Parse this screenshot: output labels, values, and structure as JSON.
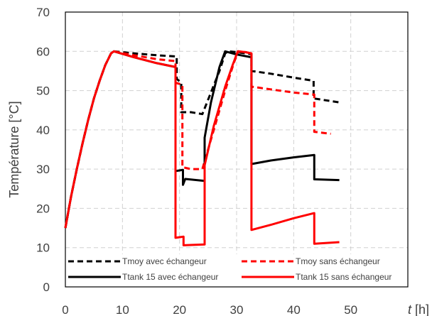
{
  "chart_data": {
    "type": "line",
    "title": "",
    "ylabel": "Température [°C]",
    "xlabel_var": "t",
    "xlabel_unit": " [h]",
    "xlim": [
      0,
      60
    ],
    "ylim": [
      0,
      70
    ],
    "x_ticks": [
      "0",
      "10",
      "20",
      "30",
      "40",
      "50"
    ],
    "y_ticks": [
      "0",
      "10",
      "20",
      "30",
      "40",
      "50",
      "60",
      "70"
    ],
    "grid": true,
    "legend_position": "bottom",
    "series": [
      {
        "name": "Tmoy avec échangeur",
        "color": "#000000",
        "dash": true,
        "points": [
          [
            0,
            15
          ],
          [
            1,
            23
          ],
          [
            2,
            30
          ],
          [
            3,
            36.5
          ],
          [
            4,
            42.5
          ],
          [
            5,
            48
          ],
          [
            6,
            52.5
          ],
          [
            7,
            56.5
          ],
          [
            8,
            59.5
          ],
          [
            8.5,
            60
          ],
          [
            12,
            59.5
          ],
          [
            16,
            59
          ],
          [
            19.5,
            58.7
          ],
          [
            19.5,
            53
          ],
          [
            20.3,
            52
          ],
          [
            20.3,
            44.5
          ],
          [
            22,
            44.5
          ],
          [
            24,
            44
          ],
          [
            25.5,
            49.5
          ],
          [
            27,
            55
          ],
          [
            28,
            59.5
          ],
          [
            28.5,
            60
          ],
          [
            30,
            59.8
          ],
          [
            31.5,
            59.5
          ],
          [
            32.6,
            59.3
          ],
          [
            32.6,
            55
          ],
          [
            36,
            54.3
          ],
          [
            40,
            53.3
          ],
          [
            43.5,
            52.5
          ],
          [
            43.5,
            48
          ],
          [
            48,
            47
          ]
        ]
      },
      {
        "name": "Tmoy sans échangeur",
        "color": "#ff0000",
        "dash": true,
        "points": [
          [
            0,
            15
          ],
          [
            1,
            23
          ],
          [
            2,
            30
          ],
          [
            3,
            36.5
          ],
          [
            4,
            42.5
          ],
          [
            5,
            48
          ],
          [
            6,
            52.5
          ],
          [
            7,
            56.5
          ],
          [
            8,
            59.5
          ],
          [
            8.5,
            60
          ],
          [
            12,
            59
          ],
          [
            16,
            58
          ],
          [
            19.3,
            57.5
          ],
          [
            19.3,
            52
          ],
          [
            20.5,
            51.5
          ],
          [
            20.5,
            30.5
          ],
          [
            22,
            30
          ],
          [
            24,
            30
          ],
          [
            26,
            40
          ],
          [
            28,
            50
          ],
          [
            29.5,
            57
          ],
          [
            30.3,
            60
          ],
          [
            31.5,
            59.8
          ],
          [
            32.6,
            59.5
          ],
          [
            32.6,
            51
          ],
          [
            36,
            50.3
          ],
          [
            40,
            49.5
          ],
          [
            43.6,
            49
          ],
          [
            43.6,
            39.5
          ],
          [
            46.5,
            39
          ]
        ]
      },
      {
        "name": "Ttank 15 avec échangeur",
        "color": "#000000",
        "dash": false,
        "points": [
          [
            0,
            15
          ],
          [
            1,
            23
          ],
          [
            2,
            30
          ],
          [
            3,
            36.5
          ],
          [
            4,
            42.5
          ],
          [
            5,
            48
          ],
          [
            6,
            52.5
          ],
          [
            7,
            56.5
          ],
          [
            8,
            59.5
          ],
          [
            8.5,
            60
          ],
          [
            12,
            58.5
          ],
          [
            16,
            57
          ],
          [
            19.3,
            56
          ],
          [
            19.3,
            29.5
          ],
          [
            20.6,
            29.8
          ],
          [
            20.6,
            26
          ],
          [
            21,
            27.5
          ],
          [
            24.4,
            27
          ],
          [
            24.4,
            38
          ],
          [
            25.5,
            47
          ],
          [
            27,
            56
          ],
          [
            28,
            60
          ],
          [
            30,
            59.2
          ],
          [
            32.6,
            58.5
          ],
          [
            32.6,
            31.3
          ],
          [
            36,
            32.2
          ],
          [
            40,
            33
          ],
          [
            43.6,
            33.6
          ],
          [
            43.6,
            27.4
          ],
          [
            48,
            27.2
          ]
        ]
      },
      {
        "name": "Ttank 15 sans échangeur",
        "color": "#ff0000",
        "dash": false,
        "points": [
          [
            0,
            15
          ],
          [
            1,
            23
          ],
          [
            2,
            30
          ],
          [
            3,
            36.5
          ],
          [
            4,
            42.5
          ],
          [
            5,
            48
          ],
          [
            6,
            52.5
          ],
          [
            7,
            56.5
          ],
          [
            8,
            59.5
          ],
          [
            8.5,
            60
          ],
          [
            12,
            58.5
          ],
          [
            16,
            57
          ],
          [
            19.3,
            56
          ],
          [
            19.3,
            12.5
          ],
          [
            20.7,
            12.8
          ],
          [
            20.7,
            10.6
          ],
          [
            24.4,
            10.8
          ],
          [
            24.4,
            31
          ],
          [
            26,
            41
          ],
          [
            28,
            51
          ],
          [
            29.3,
            56.5
          ],
          [
            30.2,
            60
          ],
          [
            31.5,
            59.8
          ],
          [
            32.6,
            59.5
          ],
          [
            32.6,
            14.5
          ],
          [
            36,
            15.8
          ],
          [
            40,
            17.5
          ],
          [
            43.6,
            18.8
          ],
          [
            43.6,
            11
          ],
          [
            48,
            11.4
          ]
        ]
      }
    ]
  }
}
